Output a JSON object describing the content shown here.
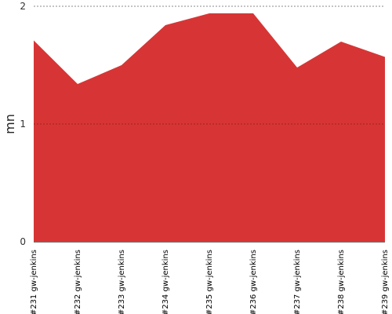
{
  "chart_data": {
    "type": "area",
    "title": "",
    "xlabel": "",
    "ylabel": "mn",
    "categories": [
      "#231 gw-jenkins",
      "#232 gw-jenkins",
      "#233 gw-jenkins",
      "#234 gw-jenkins",
      "#235 gw-jenkins",
      "#236 gw-jenkins",
      "#237 gw-jenkins",
      "#238 gw-jenkins",
      "#239 gw-jenkins"
    ],
    "values": [
      1.71,
      1.34,
      1.5,
      1.84,
      1.94,
      1.94,
      1.48,
      1.7,
      1.57
    ],
    "ylim": [
      0,
      2
    ],
    "yticks": [
      "0",
      "1",
      "2"
    ],
    "grid": true,
    "colors": {
      "fill": "#d73535",
      "grid": "#888888",
      "inner_grid": "#a32020",
      "axis": "#777777"
    }
  }
}
